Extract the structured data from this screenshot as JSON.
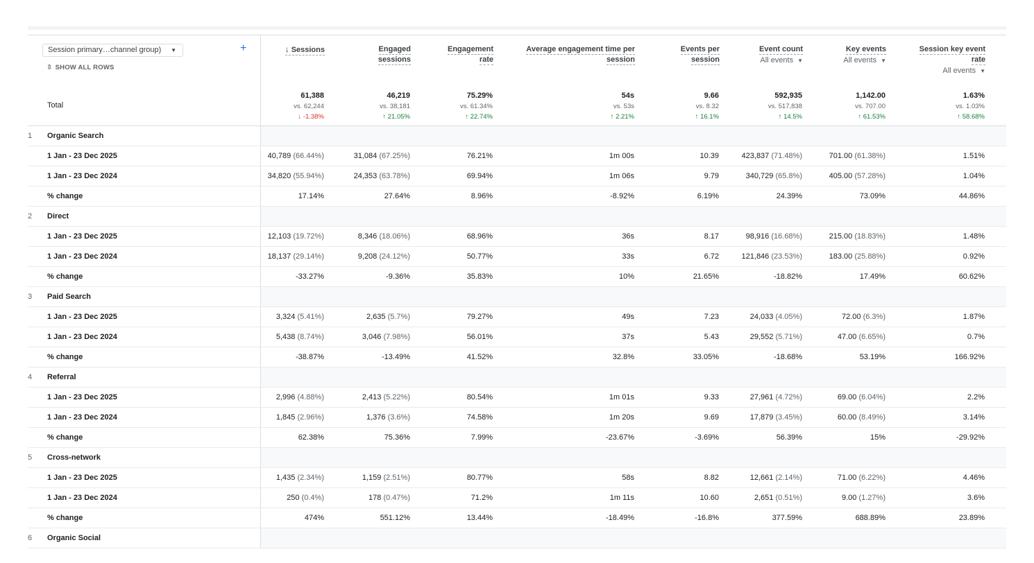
{
  "dimension": {
    "selector_label": "Session primary…channel group)",
    "show_all_rows": "SHOW ALL ROWS"
  },
  "columns": [
    {
      "label_lines": [
        "Sessions"
      ],
      "sorted": true
    },
    {
      "label_lines": [
        "Engaged",
        "sessions"
      ]
    },
    {
      "label_lines": [
        "Engagement",
        "rate"
      ]
    },
    {
      "label_lines": [
        "Average engagement time per",
        "session"
      ]
    },
    {
      "label_lines": [
        "Events per",
        "session"
      ]
    },
    {
      "label_lines": [
        "Event count"
      ],
      "sub": "All events"
    },
    {
      "label_lines": [
        "Key events"
      ],
      "sub": "All events"
    },
    {
      "label_lines": [
        "Session key event",
        "rate"
      ],
      "sub": "All events"
    }
  ],
  "total": {
    "label": "Total",
    "cells": [
      {
        "value": "61,388",
        "compare": "vs. 62,244",
        "change": "-1.38%",
        "direction": "down"
      },
      {
        "value": "46,219",
        "compare": "vs. 38,181",
        "change": "21.05%",
        "direction": "up"
      },
      {
        "value": "75.29%",
        "compare": "vs. 61.34%",
        "change": "22.74%",
        "direction": "up"
      },
      {
        "value": "54s",
        "compare": "vs. 53s",
        "change": "2.21%",
        "direction": "up"
      },
      {
        "value": "9.66",
        "compare": "vs. 8.32",
        "change": "16.1%",
        "direction": "up"
      },
      {
        "value": "592,935",
        "compare": "vs. 517,838",
        "change": "14.5%",
        "direction": "up"
      },
      {
        "value": "1,142.00",
        "compare": "vs. 707.00",
        "change": "61.53%",
        "direction": "up"
      },
      {
        "value": "1.63%",
        "compare": "vs. 1.03%",
        "change": "58.68%",
        "direction": "up"
      }
    ]
  },
  "groups": [
    {
      "rank": "1",
      "name": "Organic Search",
      "rows": [
        {
          "label": "1 Jan - 23 Dec 2025",
          "cells": [
            [
              "40,789",
              "(66.44%)"
            ],
            [
              "31,084",
              "(67.25%)"
            ],
            [
              "76.21%"
            ],
            [
              "1m 00s"
            ],
            [
              "10.39"
            ],
            [
              "423,837",
              "(71.48%)"
            ],
            [
              "701.00",
              "(61.38%)"
            ],
            [
              "1.51%"
            ]
          ]
        },
        {
          "label": "1 Jan - 23 Dec 2024",
          "cells": [
            [
              "34,820",
              "(55.94%)"
            ],
            [
              "24,353",
              "(63.78%)"
            ],
            [
              "69.94%"
            ],
            [
              "1m 06s"
            ],
            [
              "9.79"
            ],
            [
              "340,729",
              "(65.8%)"
            ],
            [
              "405.00",
              "(57.28%)"
            ],
            [
              "1.04%"
            ]
          ]
        },
        {
          "label": "% change",
          "cells": [
            [
              "17.14%"
            ],
            [
              "27.64%"
            ],
            [
              "8.96%"
            ],
            [
              "-8.92%"
            ],
            [
              "6.19%"
            ],
            [
              "24.39%"
            ],
            [
              "73.09%"
            ],
            [
              "44.86%"
            ]
          ]
        }
      ]
    },
    {
      "rank": "2",
      "name": "Direct",
      "rows": [
        {
          "label": "1 Jan - 23 Dec 2025",
          "cells": [
            [
              "12,103",
              "(19.72%)"
            ],
            [
              "8,346",
              "(18.06%)"
            ],
            [
              "68.96%"
            ],
            [
              "36s"
            ],
            [
              "8.17"
            ],
            [
              "98,916",
              "(16.68%)"
            ],
            [
              "215.00",
              "(18.83%)"
            ],
            [
              "1.48%"
            ]
          ]
        },
        {
          "label": "1 Jan - 23 Dec 2024",
          "cells": [
            [
              "18,137",
              "(29.14%)"
            ],
            [
              "9,208",
              "(24.12%)"
            ],
            [
              "50.77%"
            ],
            [
              "33s"
            ],
            [
              "6.72"
            ],
            [
              "121,846",
              "(23.53%)"
            ],
            [
              "183.00",
              "(25.88%)"
            ],
            [
              "0.92%"
            ]
          ]
        },
        {
          "label": "% change",
          "cells": [
            [
              "-33.27%"
            ],
            [
              "-9.36%"
            ],
            [
              "35.83%"
            ],
            [
              "10%"
            ],
            [
              "21.65%"
            ],
            [
              "-18.82%"
            ],
            [
              "17.49%"
            ],
            [
              "60.62%"
            ]
          ]
        }
      ]
    },
    {
      "rank": "3",
      "name": "Paid Search",
      "rows": [
        {
          "label": "1 Jan - 23 Dec 2025",
          "cells": [
            [
              "3,324",
              "(5.41%)"
            ],
            [
              "2,635",
              "(5.7%)"
            ],
            [
              "79.27%"
            ],
            [
              "49s"
            ],
            [
              "7.23"
            ],
            [
              "24,033",
              "(4.05%)"
            ],
            [
              "72.00",
              "(6.3%)"
            ],
            [
              "1.87%"
            ]
          ]
        },
        {
          "label": "1 Jan - 23 Dec 2024",
          "cells": [
            [
              "5,438",
              "(8.74%)"
            ],
            [
              "3,046",
              "(7.98%)"
            ],
            [
              "56.01%"
            ],
            [
              "37s"
            ],
            [
              "5.43"
            ],
            [
              "29,552",
              "(5.71%)"
            ],
            [
              "47.00",
              "(6.65%)"
            ],
            [
              "0.7%"
            ]
          ]
        },
        {
          "label": "% change",
          "cells": [
            [
              "-38.87%"
            ],
            [
              "-13.49%"
            ],
            [
              "41.52%"
            ],
            [
              "32.8%"
            ],
            [
              "33.05%"
            ],
            [
              "-18.68%"
            ],
            [
              "53.19%"
            ],
            [
              "166.92%"
            ]
          ]
        }
      ]
    },
    {
      "rank": "4",
      "name": "Referral",
      "rows": [
        {
          "label": "1 Jan - 23 Dec 2025",
          "cells": [
            [
              "2,996",
              "(4.88%)"
            ],
            [
              "2,413",
              "(5.22%)"
            ],
            [
              "80.54%"
            ],
            [
              "1m 01s"
            ],
            [
              "9.33"
            ],
            [
              "27,961",
              "(4.72%)"
            ],
            [
              "69.00",
              "(6.04%)"
            ],
            [
              "2.2%"
            ]
          ]
        },
        {
          "label": "1 Jan - 23 Dec 2024",
          "cells": [
            [
              "1,845",
              "(2.96%)"
            ],
            [
              "1,376",
              "(3.6%)"
            ],
            [
              "74.58%"
            ],
            [
              "1m 20s"
            ],
            [
              "9.69"
            ],
            [
              "17,879",
              "(3.45%)"
            ],
            [
              "60.00",
              "(8.49%)"
            ],
            [
              "3.14%"
            ]
          ]
        },
        {
          "label": "% change",
          "cells": [
            [
              "62.38%"
            ],
            [
              "75.36%"
            ],
            [
              "7.99%"
            ],
            [
              "-23.67%"
            ],
            [
              "-3.69%"
            ],
            [
              "56.39%"
            ],
            [
              "15%"
            ],
            [
              "-29.92%"
            ]
          ]
        }
      ]
    },
    {
      "rank": "5",
      "name": "Cross-network",
      "rows": [
        {
          "label": "1 Jan - 23 Dec 2025",
          "cells": [
            [
              "1,435",
              "(2.34%)"
            ],
            [
              "1,159",
              "(2.51%)"
            ],
            [
              "80.77%"
            ],
            [
              "58s"
            ],
            [
              "8.82"
            ],
            [
              "12,661",
              "(2.14%)"
            ],
            [
              "71.00",
              "(6.22%)"
            ],
            [
              "4.46%"
            ]
          ]
        },
        {
          "label": "1 Jan - 23 Dec 2024",
          "cells": [
            [
              "250",
              "(0.4%)"
            ],
            [
              "178",
              "(0.47%)"
            ],
            [
              "71.2%"
            ],
            [
              "1m 11s"
            ],
            [
              "10.60"
            ],
            [
              "2,651",
              "(0.51%)"
            ],
            [
              "9.00",
              "(1.27%)"
            ],
            [
              "3.6%"
            ]
          ]
        },
        {
          "label": "% change",
          "cells": [
            [
              "474%"
            ],
            [
              "551.12%"
            ],
            [
              "13.44%"
            ],
            [
              "-18.49%"
            ],
            [
              "-16.8%"
            ],
            [
              "377.59%"
            ],
            [
              "688.89%"
            ],
            [
              "23.89%"
            ]
          ]
        }
      ]
    },
    {
      "rank": "6",
      "name": "Organic Social",
      "rows": []
    }
  ]
}
